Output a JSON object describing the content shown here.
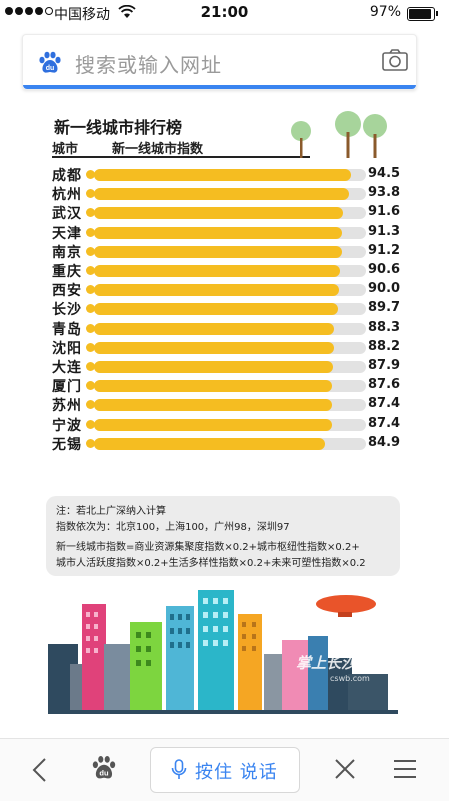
{
  "status": {
    "carrier": "中国移动",
    "time": "21:00",
    "battery_pct": "97%",
    "battery_level": 0.97
  },
  "search": {
    "placeholder": "搜索或输入网址",
    "search_icon": "baidu-paw-icon",
    "camera_icon": "camera-icon"
  },
  "chart_data": {
    "type": "bar",
    "title": "新一线城市排行榜",
    "xlabel": "城市",
    "ylabel": "新一线城市指数",
    "categories": [
      "成都",
      "杭州",
      "武汉",
      "天津",
      "南京",
      "重庆",
      "西安",
      "长沙",
      "青岛",
      "沈阳",
      "大连",
      "厦门",
      "苏州",
      "宁波",
      "无锡"
    ],
    "values": [
      94.5,
      93.8,
      91.6,
      91.3,
      91.2,
      90.6,
      90.0,
      89.7,
      88.3,
      88.2,
      87.9,
      87.6,
      87.4,
      87.4,
      84.9
    ],
    "value_labels": [
      "94.5",
      "93.8",
      "91.6",
      "91.3",
      "91.2",
      "90.6",
      "90.0",
      "89.7",
      "88.3",
      "88.2",
      "87.9",
      "87.6",
      "87.4",
      "87.4",
      "84.9"
    ],
    "xlim": [
      0,
      100
    ],
    "bar_color": "#f5bd21",
    "track_color": "#e2e2e2"
  },
  "notes": {
    "line1": "注：若北上广深纳入计算",
    "line2": "指数依次为：北京100，上海100，广州98，深圳97",
    "formula1": "新一线城市指数=商业资源集聚度指数×0.2+城市枢纽性指数×0.2+",
    "formula2": "城市人活跃度指数×0.2+生活多样性指数×0.2+未来可塑性指数×0.2"
  },
  "watermark": {
    "text": "掌上长沙",
    "url": "cswb.com"
  },
  "bottom": {
    "voice_label": "按住 说话",
    "accent": "#3a84f0"
  }
}
